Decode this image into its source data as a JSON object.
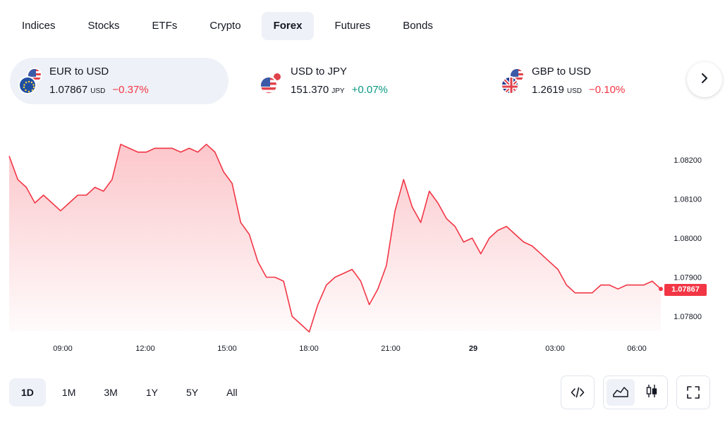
{
  "tabs": [
    {
      "label": "Indices",
      "active": false
    },
    {
      "label": "Stocks",
      "active": false
    },
    {
      "label": "ETFs",
      "active": false
    },
    {
      "label": "Crypto",
      "active": false
    },
    {
      "label": "Forex",
      "active": true
    },
    {
      "label": "Futures",
      "active": false
    },
    {
      "label": "Bonds",
      "active": false
    }
  ],
  "tickers": [
    {
      "name": "EUR to USD",
      "price": "1.07867",
      "currency": "USD",
      "change": "−0.37%",
      "direction": "negative",
      "active": true
    },
    {
      "name": "USD to JPY",
      "price": "151.370",
      "currency": "JPY",
      "change": "+0.07%",
      "direction": "positive",
      "active": false
    },
    {
      "name": "GBP to USD",
      "price": "1.2619",
      "currency": "USD",
      "change": "−0.10%",
      "direction": "negative",
      "active": false
    }
  ],
  "next_icon": "chevron-right-icon",
  "chart_data": {
    "type": "area",
    "series": [
      {
        "values": [
          1.0821,
          1.0815,
          1.0813,
          1.0809,
          1.0811,
          1.0809,
          1.0807,
          1.0809,
          1.0811,
          1.0811,
          1.0813,
          1.0812,
          1.0815,
          1.0824,
          1.0823,
          1.0822,
          1.0822,
          1.0823,
          1.0823,
          1.0823,
          1.0822,
          1.0823,
          1.0822,
          1.0824,
          1.0822,
          1.0817,
          1.0814,
          1.0804,
          1.0801,
          1.0794,
          1.079,
          1.079,
          1.0789,
          1.078,
          1.0778,
          1.0776,
          1.0783,
          1.0788,
          1.079,
          1.0791,
          1.0792,
          1.0789,
          1.0783,
          1.0787,
          1.0793,
          1.0807,
          1.0815,
          1.0808,
          1.0804,
          1.0812,
          1.0809,
          1.0805,
          1.0803,
          1.0799,
          1.08,
          1.0796,
          1.08,
          1.0802,
          1.0803,
          1.0801,
          1.0799,
          1.0798,
          1.0796,
          1.0794,
          1.0792,
          1.0788,
          1.0786,
          1.0786,
          1.0786,
          1.0788,
          1.0788,
          1.0787,
          1.0788,
          1.0788,
          1.0788,
          1.0789,
          1.0787
        ]
      }
    ],
    "x_ticks": [
      "09:00",
      "12:00",
      "15:00",
      "18:00",
      "21:00",
      "29",
      "03:00",
      "06:00"
    ],
    "y_ticks": [
      "1.08200",
      "1.08100",
      "1.08000",
      "1.07900",
      "1.07800"
    ],
    "ylim": [
      1.0775,
      1.0825
    ],
    "last_price_label": "1.07867",
    "line_color": "#f23645",
    "grid": false
  },
  "ranges": [
    {
      "label": "1D",
      "active": true
    },
    {
      "label": "1M",
      "active": false
    },
    {
      "label": "3M",
      "active": false
    },
    {
      "label": "1Y",
      "active": false
    },
    {
      "label": "5Y",
      "active": false
    },
    {
      "label": "All",
      "active": false
    }
  ],
  "tools": {
    "embed_icon": "code-icon",
    "area_icon": "area-chart-icon",
    "candle_icon": "candlestick-icon",
    "fullscreen_icon": "fullscreen-icon"
  }
}
